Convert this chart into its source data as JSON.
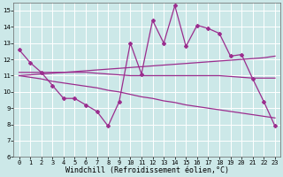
{
  "xlabel": "Windchill (Refroidissement éolien,°C)",
  "x": [
    0,
    1,
    2,
    3,
    4,
    5,
    6,
    7,
    8,
    9,
    10,
    11,
    12,
    13,
    14,
    15,
    16,
    17,
    18,
    19,
    20,
    21,
    22,
    23
  ],
  "line1": [
    12.6,
    11.8,
    11.2,
    10.4,
    9.6,
    9.6,
    9.2,
    8.8,
    7.9,
    9.4,
    13.0,
    11.1,
    14.4,
    13.0,
    15.3,
    12.8,
    14.1,
    13.9,
    13.6,
    12.2,
    12.3,
    10.8,
    9.4,
    7.9
  ],
  "line_rising": [
    11.0,
    11.05,
    11.1,
    11.15,
    11.2,
    11.25,
    11.3,
    11.35,
    11.4,
    11.45,
    11.5,
    11.55,
    11.6,
    11.65,
    11.7,
    11.75,
    11.8,
    11.85,
    11.9,
    11.95,
    12.0,
    12.05,
    12.1,
    12.2
  ],
  "line_flat": [
    11.2,
    11.2,
    11.2,
    11.2,
    11.2,
    11.2,
    11.2,
    11.15,
    11.1,
    11.05,
    11.0,
    11.0,
    11.0,
    11.0,
    11.0,
    11.0,
    11.0,
    11.0,
    11.0,
    10.95,
    10.9,
    10.85,
    10.85,
    10.85
  ],
  "line_falling": [
    11.0,
    10.9,
    10.8,
    10.65,
    10.55,
    10.45,
    10.35,
    10.25,
    10.1,
    10.0,
    9.85,
    9.7,
    9.6,
    9.45,
    9.35,
    9.2,
    9.1,
    9.0,
    8.9,
    8.8,
    8.7,
    8.6,
    8.5,
    8.4
  ],
  "ylim": [
    6,
    15.5
  ],
  "xlim": [
    -0.5,
    23.5
  ],
  "yticks": [
    6,
    7,
    8,
    9,
    10,
    11,
    12,
    13,
    14,
    15
  ],
  "xticks": [
    0,
    1,
    2,
    3,
    4,
    5,
    6,
    7,
    8,
    9,
    10,
    11,
    12,
    13,
    14,
    15,
    16,
    17,
    18,
    19,
    20,
    21,
    22,
    23
  ],
  "line_color": "#9b2d8e",
  "bg_color": "#cce8e8",
  "grid_color": "#ffffff",
  "tick_label_fontsize": 5.0,
  "xlabel_fontsize": 6.0
}
